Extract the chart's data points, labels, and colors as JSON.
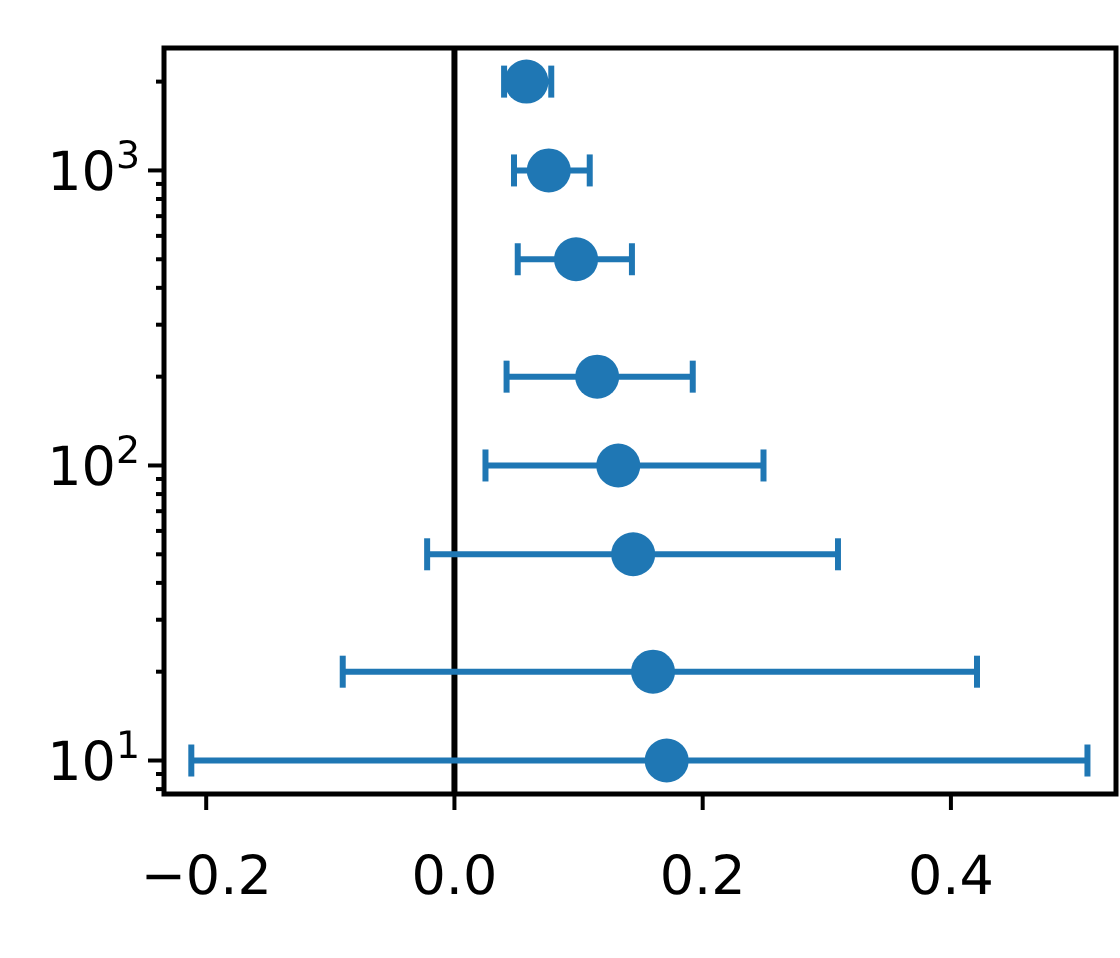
{
  "chart_data": {
    "type": "scatter",
    "x": [
      0.171,
      0.16,
      0.144,
      0.132,
      0.115,
      0.098,
      0.076,
      0.058
    ],
    "values": [
      10,
      20,
      50,
      100,
      200,
      500,
      1000,
      2000
    ],
    "xerrors": [
      [
        -0.212,
        0.51
      ],
      [
        -0.09,
        0.421
      ],
      [
        -0.022,
        0.309
      ],
      [
        0.025,
        0.249
      ],
      [
        0.042,
        0.192
      ],
      [
        0.051,
        0.143
      ],
      [
        0.048,
        0.109
      ],
      [
        0.04,
        0.078
      ]
    ],
    "color": "#1f77b4",
    "marker": "circle",
    "log": "y",
    "xlim": [
      -0.234,
      0.533
    ],
    "ylim": [
      7.7,
      2600
    ],
    "xticks": [
      {
        "value": -0.2,
        "label": "−0.2"
      },
      {
        "value": 0,
        "label": "0.0"
      },
      {
        "value": 0.2,
        "label": "0.2"
      },
      {
        "value": 0.4,
        "label": "0.4"
      }
    ],
    "yticks": [
      {
        "value": 8,
        "label": null
      },
      {
        "value": 9,
        "label": null
      },
      {
        "value": 10,
        "label": "10$^{1}$"
      },
      {
        "value": 20,
        "label": null
      },
      {
        "value": 30,
        "label": null
      },
      {
        "value": 40,
        "label": null
      },
      {
        "value": 50,
        "label": null
      },
      {
        "value": 60,
        "label": null
      },
      {
        "value": 70,
        "label": null
      },
      {
        "value": 80,
        "label": null
      },
      {
        "value": 90,
        "label": null
      },
      {
        "value": 100,
        "label": "10$^{2}$"
      },
      {
        "value": 200,
        "label": null
      },
      {
        "value": 300,
        "label": null
      },
      {
        "value": 400,
        "label": null
      },
      {
        "value": 500,
        "label": null
      },
      {
        "value": 600,
        "label": null
      },
      {
        "value": 700,
        "label": null
      },
      {
        "value": 800,
        "label": null
      },
      {
        "value": 900,
        "label": null
      },
      {
        "value": 1000,
        "label": "10$^{3}$"
      },
      {
        "value": 2000,
        "label": null
      }
    ],
    "ref_lines": [
      {
        "axis": "x",
        "value": 0,
        "color": "#000000"
      }
    ]
  }
}
